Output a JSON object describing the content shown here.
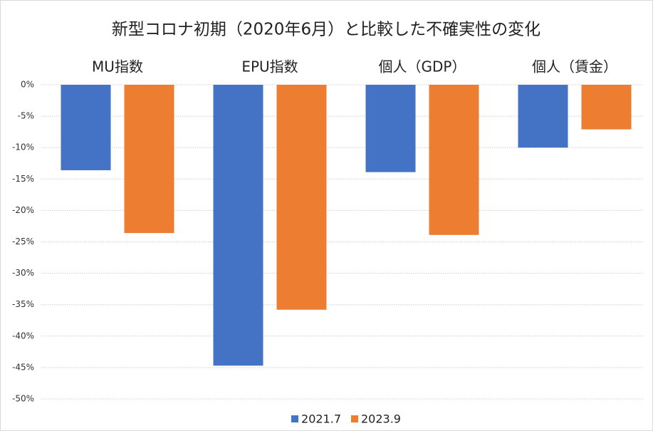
{
  "chart_data": {
    "type": "bar",
    "title": "新型コロナ初期（2020年6月）と比較した不確実性の変化",
    "categories": [
      "MU指数",
      "EPU指数",
      "個人（GDP）",
      "個人（賃金）"
    ],
    "series": [
      {
        "name": "2021.7",
        "color": "#4472c4",
        "values": [
          -13.6,
          -44.7,
          -13.9,
          -10.0
        ]
      },
      {
        "name": "2023.9",
        "color": "#ed7d31",
        "values": [
          -23.6,
          -35.8,
          -23.9,
          -7.1
        ]
      }
    ],
    "ylim": [
      -50,
      0
    ],
    "yticks": [
      {
        "value": 0,
        "label": "0%"
      },
      {
        "value": -5,
        "label": "-5%"
      },
      {
        "value": -10,
        "label": "-10%"
      },
      {
        "value": -15,
        "label": "-15%"
      },
      {
        "value": -20,
        "label": "-20%"
      },
      {
        "value": -25,
        "label": "-25%"
      },
      {
        "value": -30,
        "label": "-30%"
      },
      {
        "value": -35,
        "label": "-35%"
      },
      {
        "value": -40,
        "label": "-40%"
      },
      {
        "value": -45,
        "label": "-45%"
      },
      {
        "value": -50,
        "label": "-50%"
      }
    ],
    "grid": true,
    "legend": "bottom"
  }
}
